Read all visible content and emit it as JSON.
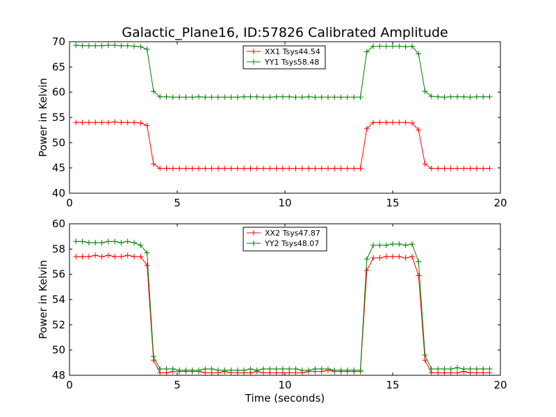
{
  "title": "Galactic_Plane16, ID:57826 Calibrated Amplitude",
  "chart_data": [
    {
      "type": "line",
      "ylabel": "Power in Kelvin",
      "xlabel": "",
      "xlim": [
        0,
        20
      ],
      "ylim": [
        40,
        70
      ],
      "xticks": [
        0,
        5,
        10,
        15,
        20
      ],
      "yticks": [
        40,
        45,
        50,
        55,
        60,
        65,
        70
      ],
      "grid": false,
      "legend_position": "top-center",
      "x": [
        0.3,
        0.6,
        0.9,
        1.2,
        1.5,
        1.8,
        2.1,
        2.4,
        2.7,
        3.0,
        3.3,
        3.6,
        3.9,
        4.2,
        4.5,
        4.8,
        5.1,
        5.4,
        5.7,
        6.0,
        6.3,
        6.6,
        6.9,
        7.2,
        7.5,
        7.8,
        8.1,
        8.4,
        8.7,
        9.0,
        9.3,
        9.6,
        9.9,
        10.2,
        10.5,
        10.8,
        11.1,
        11.4,
        11.7,
        12.0,
        12.3,
        12.6,
        12.9,
        13.2,
        13.5,
        13.8,
        14.1,
        14.4,
        14.7,
        15.0,
        15.3,
        15.6,
        15.9,
        16.2,
        16.5,
        16.8,
        17.1,
        17.4,
        17.7,
        18.0,
        18.3,
        18.6,
        18.9,
        19.2,
        19.5
      ],
      "series": [
        {
          "name": "XX1 Tsys44.54",
          "color": "#ff0000",
          "values": [
            54.0,
            54.0,
            54.0,
            54.0,
            54.0,
            54.0,
            54.1,
            54.0,
            54.0,
            54.0,
            53.9,
            53.4,
            45.8,
            44.9,
            44.9,
            44.9,
            44.9,
            44.9,
            44.9,
            44.9,
            44.9,
            44.9,
            44.9,
            44.9,
            44.9,
            44.9,
            44.9,
            44.9,
            44.9,
            44.9,
            44.9,
            44.9,
            44.9,
            44.9,
            44.9,
            44.9,
            44.9,
            44.9,
            44.9,
            44.9,
            44.9,
            44.9,
            44.9,
            44.9,
            44.9,
            52.8,
            54.0,
            54.0,
            54.0,
            54.0,
            54.0,
            54.0,
            53.9,
            52.5,
            45.8,
            44.9,
            44.9,
            44.9,
            44.9,
            44.9,
            44.9,
            44.9,
            44.9,
            44.9,
            44.9
          ]
        },
        {
          "name": "YY1 Tsys58.48",
          "color": "#008000",
          "values": [
            69.3,
            69.2,
            69.2,
            69.2,
            69.2,
            69.3,
            69.3,
            69.2,
            69.2,
            69.1,
            69.0,
            68.5,
            60.2,
            59.1,
            59.1,
            59.0,
            59.0,
            59.0,
            59.0,
            59.1,
            59.0,
            59.0,
            59.0,
            59.0,
            59.0,
            59.0,
            59.1,
            59.1,
            59.1,
            59.0,
            59.0,
            59.1,
            59.1,
            59.1,
            59.0,
            59.0,
            59.1,
            59.0,
            59.0,
            59.0,
            59.0,
            59.0,
            59.0,
            59.0,
            59.0,
            68.0,
            69.1,
            69.1,
            69.1,
            69.1,
            69.1,
            69.0,
            69.1,
            67.6,
            60.2,
            59.2,
            59.1,
            59.0,
            59.1,
            59.1,
            59.1,
            59.0,
            59.1,
            59.1,
            59.1
          ]
        }
      ]
    },
    {
      "type": "line",
      "ylabel": "Power in Kelvin",
      "xlabel": "Time (seconds)",
      "xlim": [
        0,
        20
      ],
      "ylim": [
        48,
        60
      ],
      "xticks": [
        0,
        5,
        10,
        15,
        20
      ],
      "yticks": [
        48,
        50,
        52,
        54,
        56,
        58,
        60
      ],
      "grid": false,
      "legend_position": "top-center",
      "x": [
        0.3,
        0.6,
        0.9,
        1.2,
        1.5,
        1.8,
        2.1,
        2.4,
        2.7,
        3.0,
        3.3,
        3.6,
        3.9,
        4.2,
        4.5,
        4.8,
        5.1,
        5.4,
        5.7,
        6.0,
        6.3,
        6.6,
        6.9,
        7.2,
        7.5,
        7.8,
        8.1,
        8.4,
        8.7,
        9.0,
        9.3,
        9.6,
        9.9,
        10.2,
        10.5,
        10.8,
        11.1,
        11.4,
        11.7,
        12.0,
        12.3,
        12.6,
        12.9,
        13.2,
        13.5,
        13.8,
        14.1,
        14.4,
        14.7,
        15.0,
        15.3,
        15.6,
        15.9,
        16.2,
        16.5,
        16.8,
        17.1,
        17.4,
        17.7,
        18.0,
        18.3,
        18.6,
        18.9,
        19.2,
        19.5
      ],
      "series": [
        {
          "name": "XX2 Tsys47.87",
          "color": "#ff0000",
          "values": [
            57.4,
            57.4,
            57.4,
            57.5,
            57.4,
            57.5,
            57.4,
            57.4,
            57.5,
            57.4,
            57.4,
            56.7,
            49.2,
            48.2,
            48.2,
            48.3,
            48.3,
            48.3,
            48.3,
            48.3,
            48.2,
            48.2,
            48.2,
            48.3,
            48.2,
            48.2,
            48.2,
            48.2,
            48.3,
            48.2,
            48.2,
            48.2,
            48.2,
            48.2,
            48.2,
            48.2,
            48.3,
            48.3,
            48.3,
            48.4,
            48.3,
            48.3,
            48.3,
            48.3,
            48.3,
            56.3,
            57.3,
            57.3,
            57.4,
            57.4,
            57.4,
            57.3,
            57.4,
            55.9,
            49.2,
            48.2,
            48.2,
            48.2,
            48.2,
            48.2,
            48.3,
            48.2,
            48.2,
            48.2,
            48.2
          ]
        },
        {
          "name": "YY2 Tsys48.07",
          "color": "#008000",
          "values": [
            58.6,
            58.6,
            58.5,
            58.5,
            58.5,
            58.6,
            58.6,
            58.5,
            58.6,
            58.5,
            58.3,
            57.7,
            49.5,
            48.5,
            48.5,
            48.5,
            48.4,
            48.4,
            48.4,
            48.4,
            48.5,
            48.5,
            48.4,
            48.4,
            48.4,
            48.4,
            48.4,
            48.5,
            48.4,
            48.5,
            48.5,
            48.5,
            48.5,
            48.5,
            48.5,
            48.4,
            48.4,
            48.5,
            48.5,
            48.5,
            48.4,
            48.4,
            48.4,
            48.4,
            48.4,
            57.2,
            58.3,
            58.3,
            58.3,
            58.4,
            58.4,
            58.3,
            58.4,
            57.0,
            49.6,
            48.5,
            48.5,
            48.5,
            48.5,
            48.6,
            48.5,
            48.5,
            48.5,
            48.5,
            48.5
          ]
        }
      ]
    }
  ]
}
